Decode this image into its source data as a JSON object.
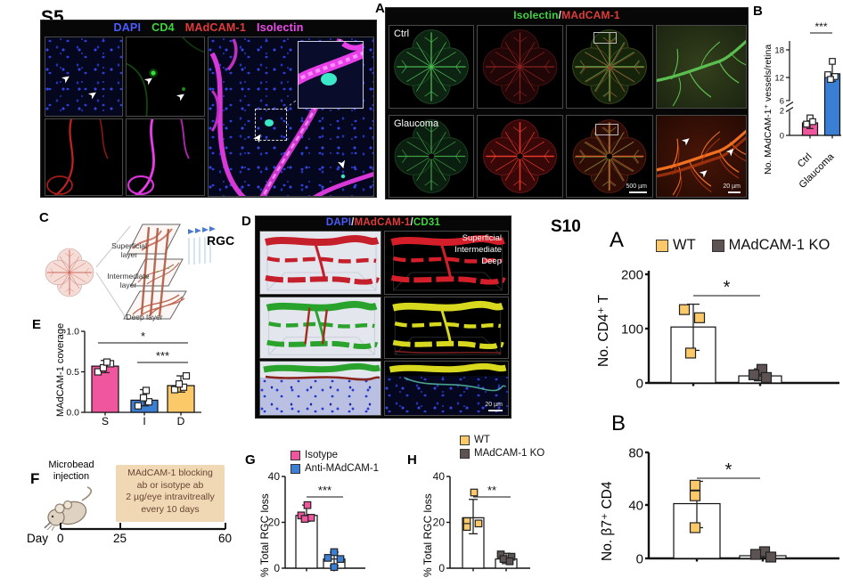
{
  "colors": {
    "pink": "#f0569e",
    "blue": "#3b7fd4",
    "yellow": "#fbc968",
    "dark_brown": "#5d5353",
    "white": "#ffffff",
    "dapi_blue": "#4a5cff",
    "cd4_green": "#3ed43e",
    "madcam_red": "#e23b3b",
    "isolectin_magenta": "#ee4bee",
    "tan_box": "#f0d8b5"
  },
  "s5": {
    "panel_label": "S5",
    "channels": [
      {
        "label": "DAPI",
        "color": "#4a5cff"
      },
      {
        "label": "CD4",
        "color": "#3ed43e"
      },
      {
        "label": "MAdCAM-1",
        "color": "#e23b3b"
      },
      {
        "label": "Isolectin",
        "color": "#ee4bee"
      }
    ]
  },
  "panelA": {
    "label": "A",
    "header": {
      "part1": "Isolectin",
      "sep": "/",
      "part2": "MAdCAM-1",
      "color1": "#3ed43e",
      "color2": "#e23b3b"
    },
    "row_labels": [
      "Ctrl",
      "Glaucoma"
    ],
    "scalebar1": "500 µm",
    "scalebar2": "20 µm"
  },
  "panelC": {
    "label": "C",
    "layers": [
      "Superficial\nlayer",
      "Intermediate\nlayer",
      "Deep layer"
    ],
    "rgc": "RGC"
  },
  "panelD": {
    "label": "D",
    "header": [
      {
        "label": "DAPI",
        "color": "#4a5cff"
      },
      {
        "label": "MAdCAM-1",
        "color": "#e23b3b"
      },
      {
        "label": "CD31",
        "color": "#3ed43e"
      }
    ],
    "header_sep": "/",
    "depth_labels": [
      "Superficial",
      "Intermediate",
      "Deep"
    ],
    "scalebar": "20 µm"
  },
  "panelF": {
    "label": "F",
    "injection_label": "Microbead\ninjection",
    "box_text": "MAdCAM-1 blocking\nab or isotype ab\n2 µg/eye intravitreally\nevery 10 days",
    "axis_prefix": "Day",
    "timepoints": [
      "0",
      "25",
      "60"
    ]
  },
  "s10": {
    "label": "S10",
    "panelA_label": "A",
    "panelB_label": "B",
    "legend": [
      {
        "label": "WT",
        "color": "#fbc968"
      },
      {
        "label": "MAdCAM-1 KO",
        "color": "#5d5353"
      }
    ]
  },
  "chart_data": [
    {
      "id": "panel-b",
      "panel_label": "B",
      "type": "bar",
      "ylabel": "No. MAdCAM-1⁺ vessels/retina",
      "categories": [
        "Ctrl",
        "Glaucoma"
      ],
      "values": [
        1.0,
        12.8
      ],
      "bar_colors": [
        "#f0569e",
        "#3b7fd4"
      ],
      "point_colors": [
        "#ffffff",
        "#ffffff"
      ],
      "points": [
        [
          1.4,
          1.1,
          0.9
        ],
        [
          15.5,
          12.6,
          12.2,
          11.5
        ]
      ],
      "errors": [
        [
          0.55,
          1.5
        ],
        [
          11.0,
          15.5
        ]
      ],
      "yticks": [
        {
          "v": 0,
          "label": "0"
        },
        {
          "v": 2,
          "label": "2"
        },
        {
          "v": 6,
          "label": "6"
        },
        {
          "v": 12,
          "label": "12"
        },
        {
          "v": 18,
          "label": "18"
        }
      ],
      "axis_break_between": [
        2,
        6
      ],
      "ylim": [
        0,
        18
      ],
      "sig": [
        {
          "label": "***"
        }
      ]
    },
    {
      "id": "panel-e",
      "panel_label": "E",
      "type": "bar",
      "ylabel": "MAdCAM-1 coverage",
      "categories": [
        "S",
        "I",
        "D"
      ],
      "values": [
        0.57,
        0.15,
        0.33
      ],
      "bar_colors": [
        "#f0569e",
        "#3b7fd4",
        "#fbc968"
      ],
      "point_colors": [
        "#ffffff",
        "#ffffff",
        "#ffffff"
      ],
      "points": [
        [
          0.5,
          0.55,
          0.6,
          0.62
        ],
        [
          0.08,
          0.13,
          0.18,
          0.27
        ],
        [
          0.28,
          0.31,
          0.35,
          0.45
        ]
      ],
      "errors": [
        [
          0.49,
          0.64
        ],
        [
          0.08,
          0.28
        ],
        [
          0.25,
          0.45
        ]
      ],
      "yticks": [
        {
          "v": 0,
          "label": "0.0"
        },
        {
          "v": 0.5,
          "label": "0.5"
        },
        {
          "v": 1,
          "label": "1.0"
        }
      ],
      "ylim": [
        0,
        1.0
      ],
      "sig": [
        {
          "label": "*"
        },
        {
          "label": "***"
        }
      ]
    },
    {
      "id": "panel-g",
      "panel_label": "G",
      "type": "bar",
      "ylabel": "% Total RGC loss",
      "legend": [
        {
          "label": "Isotype",
          "color": "#f0569e"
        },
        {
          "label": "Anti-MAdCAM-1",
          "color": "#3b7fd4"
        }
      ],
      "categories": [
        "Isotype",
        "Anti-MAdCAM-1"
      ],
      "values": [
        23,
        4
      ],
      "bar_colors": [
        "#ffffff",
        "#ffffff"
      ],
      "point_colors": [
        "#f0569e",
        "#3b7fd4"
      ],
      "points": [
        [
          27.5,
          23,
          22,
          21.5
        ],
        [
          7,
          4.5,
          4,
          0.5
        ]
      ],
      "errors": [
        [
          20.5,
          27.5
        ],
        [
          1,
          7
        ]
      ],
      "yticks": [
        {
          "v": 0,
          "label": "0"
        },
        {
          "v": 20,
          "label": "20"
        },
        {
          "v": 40,
          "label": "40"
        }
      ],
      "ylim": [
        0,
        40
      ],
      "sig": [
        {
          "label": "***"
        }
      ]
    },
    {
      "id": "panel-h",
      "panel_label": "H",
      "type": "bar",
      "ylabel": "% Total RGC loss",
      "legend": [
        {
          "label": "WT",
          "color": "#fbc968"
        },
        {
          "label": "MAdCAM-1 KO",
          "color": "#5d5353"
        }
      ],
      "categories": [
        "WT",
        "MAdCAM-1 KO"
      ],
      "values": [
        22,
        4
      ],
      "bar_colors": [
        "#ffffff",
        "#ffffff"
      ],
      "point_colors": [
        "#fbc968",
        "#5d5353"
      ],
      "points": [
        [
          33,
          20.5,
          19.5,
          18
        ],
        [
          6,
          5,
          4,
          3
        ]
      ],
      "errors": [
        [
          15,
          30
        ],
        [
          2,
          6.5
        ]
      ],
      "yticks": [
        {
          "v": 0,
          "label": "0"
        },
        {
          "v": 20,
          "label": "20"
        },
        {
          "v": 40,
          "label": "40"
        }
      ],
      "ylim": [
        0,
        40
      ],
      "sig": [
        {
          "label": "**"
        }
      ]
    },
    {
      "id": "s10-a",
      "panel_label": "A",
      "type": "bar",
      "ylabel": "No. CD4⁺ T",
      "categories": [
        "WT",
        "MAdCAM-1 KO"
      ],
      "values": [
        103,
        13
      ],
      "bar_colors": [
        "#ffffff",
        "#ffffff"
      ],
      "point_colors": [
        "#fbc968",
        "#5d5353"
      ],
      "points": [
        [
          135,
          120,
          55
        ],
        [
          25,
          15,
          10
        ]
      ],
      "errors": [
        [
          60,
          145
        ],
        [
          4,
          26
        ]
      ],
      "yticks": [
        {
          "v": 0,
          "label": "0"
        },
        {
          "v": 100,
          "label": "100"
        },
        {
          "v": 200,
          "label": "200"
        }
      ],
      "ylim": [
        0,
        200
      ],
      "sig": [
        {
          "label": "*"
        }
      ]
    },
    {
      "id": "s10-b",
      "panel_label": "B",
      "type": "bar",
      "ylabel": "No. β7⁺ CD4",
      "categories": [
        "WT",
        "MAdCAM-1 KO"
      ],
      "values": [
        41,
        2
      ],
      "bar_colors": [
        "#ffffff",
        "#ffffff"
      ],
      "point_colors": [
        "#fbc968",
        "#5d5353"
      ],
      "points": [
        [
          55,
          47,
          23
        ],
        [
          5,
          3,
          1
        ]
      ],
      "errors": [
        [
          23,
          58
        ],
        [
          0.5,
          6
        ]
      ],
      "yticks": [
        {
          "v": 0,
          "label": "0"
        },
        {
          "v": 40,
          "label": "40"
        },
        {
          "v": 80,
          "label": "80"
        }
      ],
      "ylim": [
        0,
        80
      ],
      "sig": [
        {
          "label": "*"
        }
      ]
    }
  ]
}
